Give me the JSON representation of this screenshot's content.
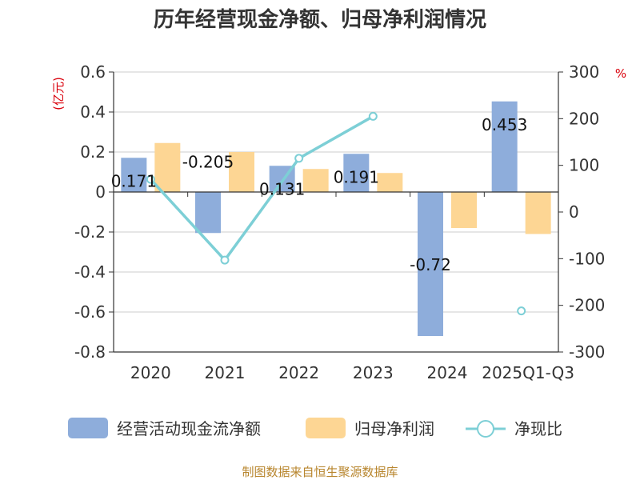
{
  "title": "历年经营现金净额、归母净利润情况",
  "source": "制图数据来自恒生聚源数据库",
  "colors": {
    "cash": "#8eaddb",
    "profit": "#fdd694",
    "ratio": "#7dcfd6",
    "unit": "#d9000b"
  },
  "chart_data": {
    "type": "bar",
    "categories": [
      "2020",
      "2021",
      "2022",
      "2023",
      "2024",
      "2025Q1-Q3"
    ],
    "series": [
      {
        "name": "经营活动现金流净额",
        "type": "bar",
        "axis": "left",
        "values": [
          0.171,
          -0.205,
          0.131,
          0.191,
          -0.72,
          0.453
        ],
        "labels": [
          "0.171",
          "-0.205",
          "0.131",
          "0.191",
          "-0.72",
          "0.453"
        ]
      },
      {
        "name": "归母净利润",
        "type": "bar",
        "axis": "left",
        "values": [
          0.245,
          0.2,
          0.115,
          0.095,
          -0.18,
          -0.21
        ]
      },
      {
        "name": "净现比",
        "type": "line",
        "axis": "right",
        "values": [
          70,
          -103,
          115,
          205,
          null,
          -212
        ]
      }
    ],
    "y_left": {
      "unit": "(亿元)",
      "ylim": [
        -0.8,
        0.6
      ],
      "ticks": [
        0.6,
        0.4,
        0.2,
        0,
        -0.2,
        -0.4,
        -0.6,
        -0.8
      ],
      "tick_labels": [
        "0.6",
        "0.4",
        "0.2",
        "0",
        "-0.2",
        "-0.4",
        "-0.6",
        "-0.8"
      ]
    },
    "y_right": {
      "unit": "%",
      "ylim": [
        -300,
        300
      ],
      "ticks": [
        300,
        200,
        100,
        0,
        -100,
        -200,
        -300
      ],
      "tick_labels": [
        "300",
        "200",
        "100",
        "0",
        "-100",
        "-200",
        "-300"
      ]
    },
    "grid": true,
    "legend": "bottom"
  }
}
